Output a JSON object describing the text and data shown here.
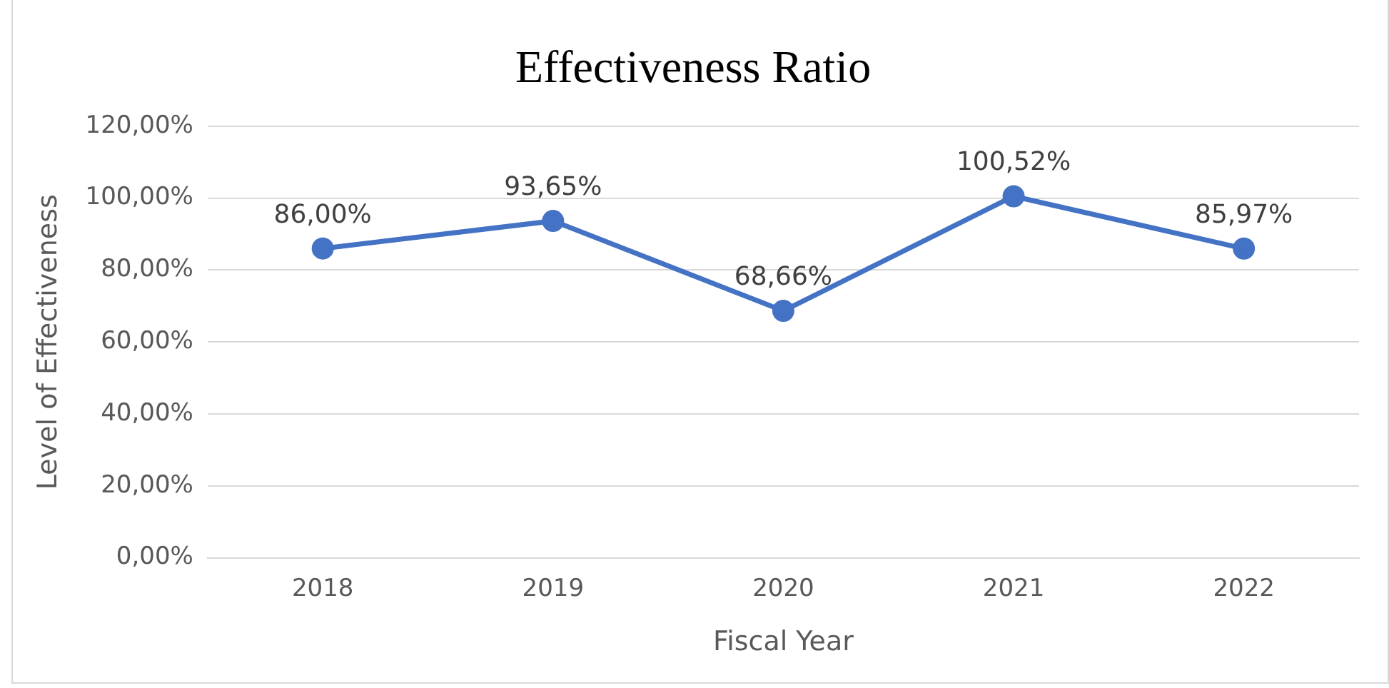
{
  "chart_data": {
    "type": "line",
    "title": "Effectiveness Ratio",
    "xlabel": "Fiscal Year",
    "ylabel": "Level of Effectiveness",
    "categories": [
      "2018",
      "2019",
      "2020",
      "2021",
      "2022"
    ],
    "series": [
      {
        "color": "#4472c4",
        "values": [
          86.0,
          93.65,
          68.66,
          100.52,
          85.97
        ],
        "value_labels": [
          "86,00%",
          "93,65%",
          "68,66%",
          "100,52%",
          "85,97%"
        ]
      }
    ],
    "ylim": [
      0,
      120
    ],
    "yticks": [
      {
        "value": 0,
        "label": "0,00%"
      },
      {
        "value": 20,
        "label": "20,00%"
      },
      {
        "value": 40,
        "label": "40,00%"
      },
      {
        "value": 60,
        "label": "60,00%"
      },
      {
        "value": 80,
        "label": "80,00%"
      },
      {
        "value": 100,
        "label": "100,00%"
      },
      {
        "value": 120,
        "label": "120,00%"
      }
    ],
    "grid": "y",
    "marker": "circle",
    "line_style": "solid"
  }
}
